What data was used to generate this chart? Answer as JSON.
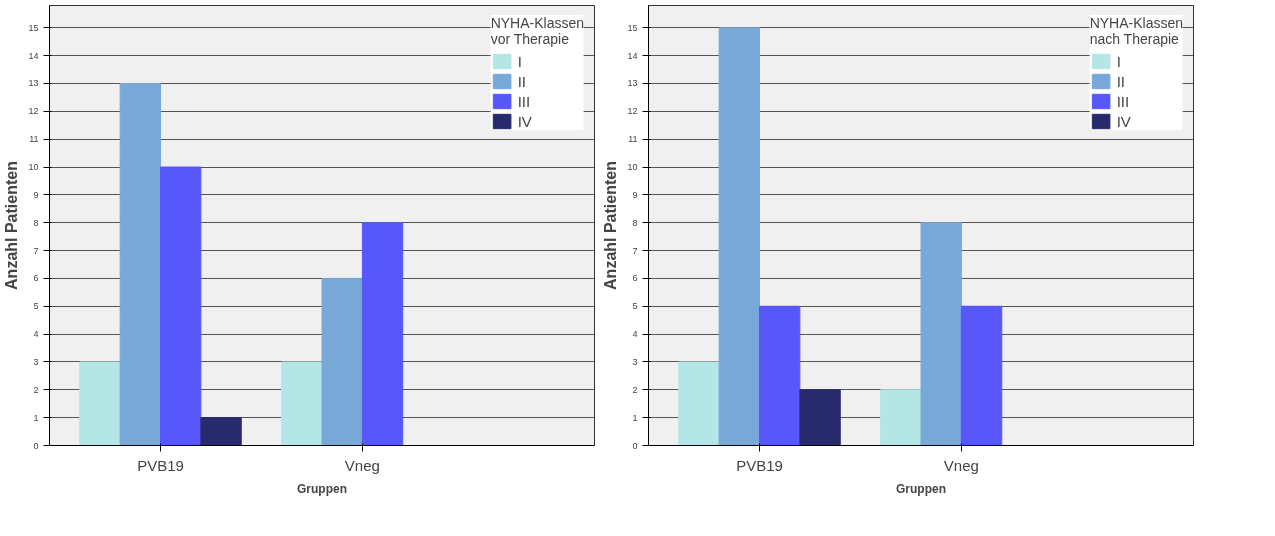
{
  "chart_data": [
    {
      "type": "bar",
      "xlabel": "Gruppen",
      "ylabel": "Anzahl Patienten",
      "legend_title": "NYHA-Klassen vor Therapie",
      "categories": [
        "PVB19",
        "Vneg"
      ],
      "series": [
        {
          "name": "I",
          "color": "#b4e6e6",
          "values": [
            3,
            3
          ]
        },
        {
          "name": "II",
          "color": "#78a8d8",
          "values": [
            13,
            6
          ]
        },
        {
          "name": "III",
          "color": "#5858fa",
          "values": [
            10,
            8
          ]
        },
        {
          "name": "IV",
          "color": "#282a6e",
          "values": [
            1,
            0
          ]
        }
      ],
      "ylim": [
        0,
        15.8
      ],
      "yticks": [
        0,
        1,
        2,
        3,
        4,
        5,
        6,
        7,
        8,
        9,
        10,
        11,
        12,
        13,
        14,
        15
      ],
      "grid": "y",
      "legend": "top right"
    },
    {
      "type": "bar",
      "xlabel": "Gruppen",
      "ylabel": "Anzahl Patienten",
      "legend_title": "NYHA-Klassen nach Therapie",
      "categories": [
        "PVB19",
        "Vneg"
      ],
      "series": [
        {
          "name": "I",
          "color": "#b4e6e6",
          "values": [
            3,
            2
          ]
        },
        {
          "name": "II",
          "color": "#78a8d8",
          "values": [
            15,
            8
          ]
        },
        {
          "name": "III",
          "color": "#5858fa",
          "values": [
            5,
            5
          ]
        },
        {
          "name": "IV",
          "color": "#282a6e",
          "values": [
            2,
            0
          ]
        }
      ],
      "ylim": [
        0,
        15.8
      ],
      "yticks": [
        0,
        1,
        2,
        3,
        4,
        5,
        6,
        7,
        8,
        9,
        10,
        11,
        12,
        13,
        14,
        15
      ],
      "grid": "y",
      "legend": "top right"
    }
  ]
}
